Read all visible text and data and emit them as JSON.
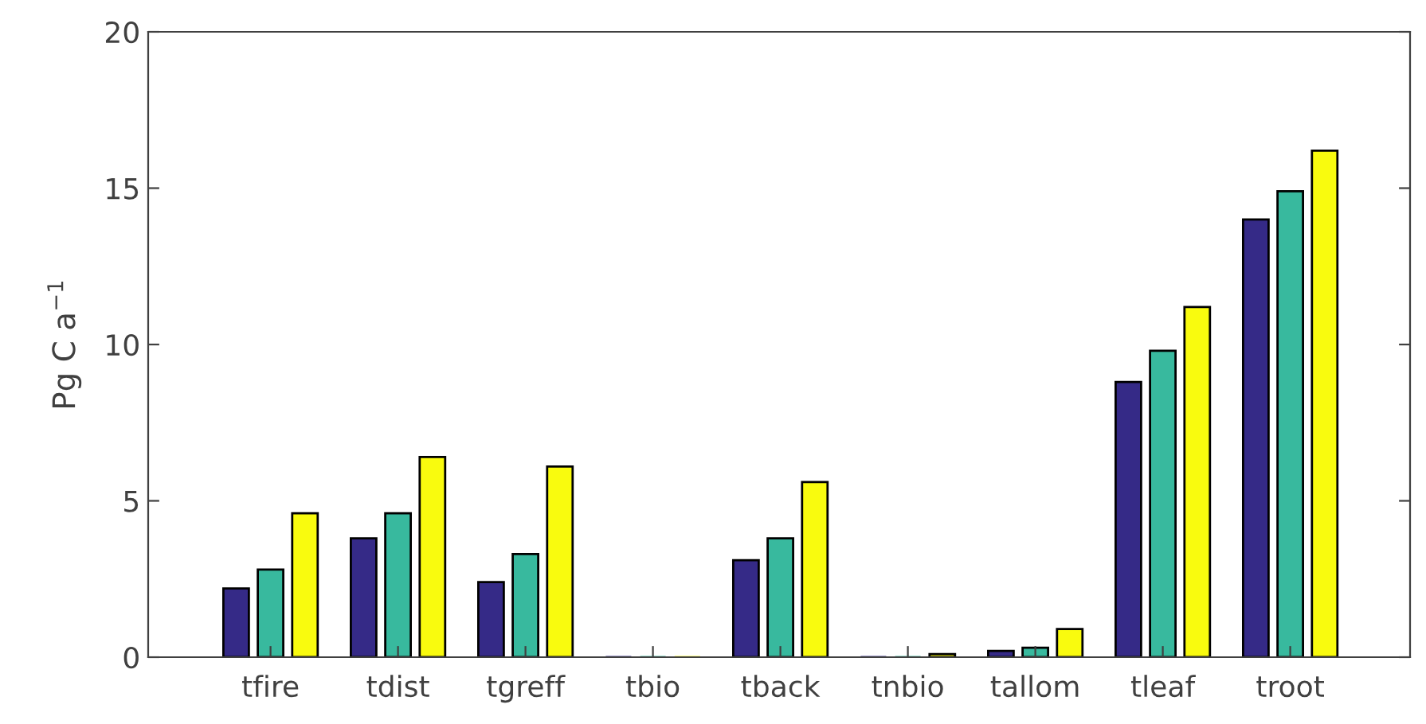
{
  "chart_data": {
    "type": "bar",
    "ylabel": "Pg C a$^{−1}$",
    "categories": [
      "tfire",
      "tdist",
      "tgreff",
      "tbio",
      "tback",
      "tnbio",
      "tallom",
      "tleaf",
      "troot"
    ],
    "series": [
      {
        "color": "#352a87",
        "values": [
          2.2,
          3.8,
          2.4,
          0,
          3.1,
          0,
          0.2,
          8.8,
          14.0
        ]
      },
      {
        "color": "#38b99e",
        "values": [
          2.8,
          4.6,
          3.3,
          0,
          3.8,
          0,
          0.3,
          9.8,
          14.9
        ]
      },
      {
        "color": "#f9fb0e",
        "values": [
          4.6,
          6.4,
          6.1,
          0,
          5.6,
          0.1,
          0.9,
          11.2,
          16.2
        ]
      }
    ],
    "ylim": [
      0,
      20
    ],
    "yticks": [
      0,
      5,
      10,
      15,
      20
    ],
    "grid": false,
    "legend": false
  }
}
